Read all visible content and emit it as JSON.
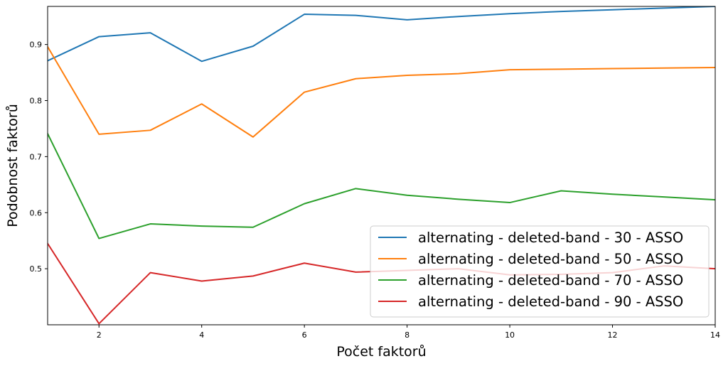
{
  "chart_data": {
    "type": "line",
    "xlabel": "Počet faktorů",
    "ylabel": "Podobnost faktorů",
    "xlim": [
      1,
      14
    ],
    "ylim": [
      0.4,
      0.968
    ],
    "x_ticks": [
      2,
      4,
      6,
      8,
      10,
      12,
      14
    ],
    "y_ticks": [
      0.5,
      0.6,
      0.7,
      0.8,
      0.9
    ],
    "x_tick_labels": [
      "2",
      "4",
      "6",
      "8",
      "10",
      "12",
      "14"
    ],
    "y_tick_labels": [
      "0.5",
      "0.6",
      "0.7",
      "0.8",
      "0.9"
    ],
    "grid": false,
    "legend_position": "lower-right",
    "x": [
      1,
      2,
      3,
      4,
      5,
      6,
      7,
      8,
      9,
      10,
      11,
      12,
      13,
      14
    ],
    "series": [
      {
        "name": "alternating - deleted-band - 30 - ASSO",
        "color": "#1f77b4",
        "values": [
          0.871,
          0.914,
          0.921,
          0.87,
          0.897,
          0.954,
          0.952,
          0.944,
          0.95,
          0.955,
          0.959,
          0.962,
          0.965,
          0.968
        ]
      },
      {
        "name": "alternating - deleted-band - 50 - ASSO",
        "color": "#ff7f0e",
        "values": [
          0.896,
          0.74,
          0.747,
          0.794,
          0.735,
          0.815,
          0.839,
          0.845,
          0.848,
          0.855,
          0.856,
          0.857,
          0.858,
          0.859
        ]
      },
      {
        "name": "alternating - deleted-band - 70 - ASSO",
        "color": "#2ca02c",
        "values": [
          0.741,
          0.554,
          0.58,
          0.576,
          0.574,
          0.616,
          0.643,
          0.631,
          0.624,
          0.618,
          0.639,
          0.633,
          0.628,
          0.623
        ]
      },
      {
        "name": "alternating - deleted-band - 90 - ASSO",
        "color": "#d62728",
        "values": [
          0.545,
          0.402,
          0.493,
          0.478,
          0.487,
          0.51,
          0.494,
          0.497,
          0.5,
          0.489,
          0.49,
          0.493,
          0.505,
          0.5
        ]
      }
    ]
  }
}
